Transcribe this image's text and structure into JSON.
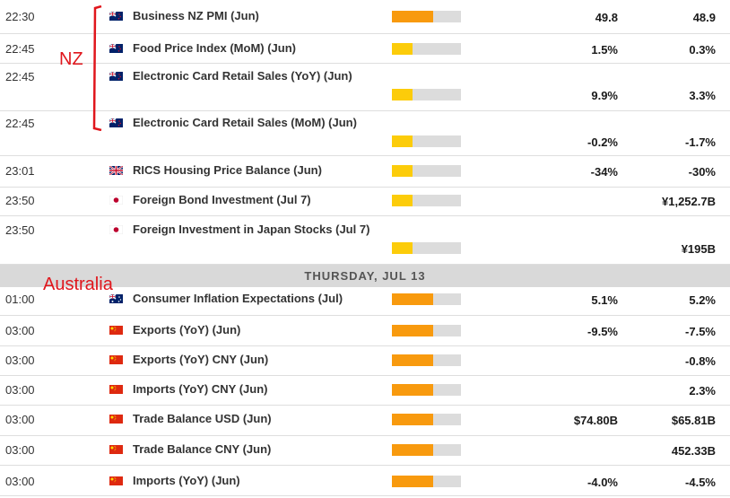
{
  "colors": {
    "high": "#f89a0e",
    "medium": "#fccc0a",
    "empty": "#dcdcdc",
    "annotation": "#e0161c"
  },
  "annotations": {
    "nz": "NZ",
    "australia": "Australia"
  },
  "day_header": "THURSDAY, JUL 13",
  "events": [
    {
      "time": "22:30",
      "country": "nz",
      "name": "Business NZ PMI (Jun)",
      "impact": "high",
      "impact_fraction": 0.6,
      "actual": "49.8",
      "previous": "48.9"
    },
    {
      "time": "22:45",
      "country": "nz",
      "name": "Food Price Index (MoM) (Jun)",
      "impact": "medium",
      "impact_fraction": 0.3,
      "actual": "1.5%",
      "previous": "0.3%"
    },
    {
      "time": "22:45",
      "country": "nz",
      "name": "Electronic Card Retail Sales (YoY) (Jun)",
      "impact": "medium",
      "impact_fraction": 0.3,
      "actual": "9.9%",
      "previous": "3.3%"
    },
    {
      "time": "22:45",
      "country": "nz",
      "name": "Electronic Card Retail Sales (MoM) (Jun)",
      "impact": "medium",
      "impact_fraction": 0.3,
      "actual": "-0.2%",
      "previous": "-1.7%"
    },
    {
      "time": "23:01",
      "country": "uk",
      "name": "RICS Housing Price Balance (Jun)",
      "impact": "medium",
      "impact_fraction": 0.3,
      "actual": "-34%",
      "previous": "-30%"
    },
    {
      "time": "23:50",
      "country": "jp",
      "name": "Foreign Bond Investment (Jul 7)",
      "impact": "medium",
      "impact_fraction": 0.3,
      "actual": "",
      "previous": "¥1,252.7B"
    },
    {
      "time": "23:50",
      "country": "jp",
      "name": "Foreign Investment in Japan Stocks (Jul 7)",
      "impact": "medium",
      "impact_fraction": 0.3,
      "actual": "",
      "previous": "¥195B"
    },
    {
      "time": "01:00",
      "country": "au",
      "name": "Consumer Inflation Expectations (Jul)",
      "impact": "high",
      "impact_fraction": 0.6,
      "actual": "5.1%",
      "previous": "5.2%"
    },
    {
      "time": "03:00",
      "country": "cn",
      "name": "Exports (YoY) (Jun)",
      "impact": "high",
      "impact_fraction": 0.6,
      "actual": "-9.5%",
      "previous": "-7.5%"
    },
    {
      "time": "03:00",
      "country": "cn",
      "name": "Exports (YoY) CNY (Jun)",
      "impact": "high",
      "impact_fraction": 0.6,
      "actual": "",
      "previous": "-0.8%"
    },
    {
      "time": "03:00",
      "country": "cn",
      "name": "Imports (YoY) CNY (Jun)",
      "impact": "high",
      "impact_fraction": 0.6,
      "actual": "",
      "previous": "2.3%"
    },
    {
      "time": "03:00",
      "country": "cn",
      "name": "Trade Balance USD (Jun)",
      "impact": "high",
      "impact_fraction": 0.6,
      "actual": "$74.80B",
      "previous": "$65.81B"
    },
    {
      "time": "03:00",
      "country": "cn",
      "name": "Trade Balance CNY (Jun)",
      "impact": "high",
      "impact_fraction": 0.6,
      "actual": "",
      "previous": "452.33B"
    },
    {
      "time": "03:00",
      "country": "cn",
      "name": "Imports (YoY) (Jun)",
      "impact": "high",
      "impact_fraction": 0.6,
      "actual": "-4.0%",
      "previous": "-4.5%"
    }
  ]
}
